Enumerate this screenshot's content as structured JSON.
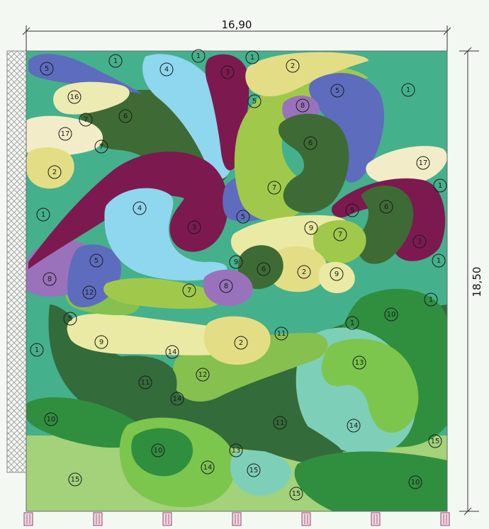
{
  "dimensions": {
    "width_label": "16,90",
    "height_label": "18,50"
  },
  "colors": {
    "1": "#45b08c",
    "2": "#e3de86",
    "3": "#7c1a50",
    "4": "#8fd6ef",
    "5": "#5e6cbe",
    "6": "#3e6b35",
    "7": "#a0c94c",
    "8": "#9a72bb",
    "9": "#eaeaa4",
    "10": "#2f8f3f",
    "11": "#336b3a",
    "12": "#86c04e",
    "13": "#7cc64e",
    "14": "#7ecfb7",
    "15": "#a3d27a",
    "16": "#ecebb2",
    "17": "#f3ecc8"
  },
  "callouts": [
    {
      "n": "5"
    },
    {
      "n": "1"
    },
    {
      "n": "4"
    },
    {
      "n": "1"
    },
    {
      "n": "3"
    },
    {
      "n": "1"
    },
    {
      "n": "2"
    },
    {
      "n": "5"
    },
    {
      "n": "1"
    },
    {
      "n": "16"
    },
    {
      "n": "7"
    },
    {
      "n": "6"
    },
    {
      "n": "5"
    },
    {
      "n": "8"
    },
    {
      "n": "17"
    },
    {
      "n": "7"
    },
    {
      "n": "6"
    },
    {
      "n": "2"
    },
    {
      "n": "17"
    },
    {
      "n": "7"
    },
    {
      "n": "1"
    },
    {
      "n": "1"
    },
    {
      "n": "4"
    },
    {
      "n": "5"
    },
    {
      "n": "9"
    },
    {
      "n": "6"
    },
    {
      "n": "3"
    },
    {
      "n": "9"
    },
    {
      "n": "7"
    },
    {
      "n": "3"
    },
    {
      "n": "5"
    },
    {
      "n": "9"
    },
    {
      "n": "6"
    },
    {
      "n": "2"
    },
    {
      "n": "9"
    },
    {
      "n": "1"
    },
    {
      "n": "8"
    },
    {
      "n": "7"
    },
    {
      "n": "8"
    },
    {
      "n": "12"
    },
    {
      "n": "1"
    },
    {
      "n": "5"
    },
    {
      "n": "10"
    },
    {
      "n": "1"
    },
    {
      "n": "11"
    },
    {
      "n": "9"
    },
    {
      "n": "2"
    },
    {
      "n": "1"
    },
    {
      "n": "14"
    },
    {
      "n": "13"
    },
    {
      "n": "12"
    },
    {
      "n": "11"
    },
    {
      "n": "14"
    },
    {
      "n": "10"
    },
    {
      "n": "11"
    },
    {
      "n": "14"
    },
    {
      "n": "10"
    },
    {
      "n": "15"
    },
    {
      "n": "13"
    },
    {
      "n": "14"
    },
    {
      "n": "15"
    },
    {
      "n": "15"
    },
    {
      "n": "15"
    },
    {
      "n": "10"
    }
  ]
}
